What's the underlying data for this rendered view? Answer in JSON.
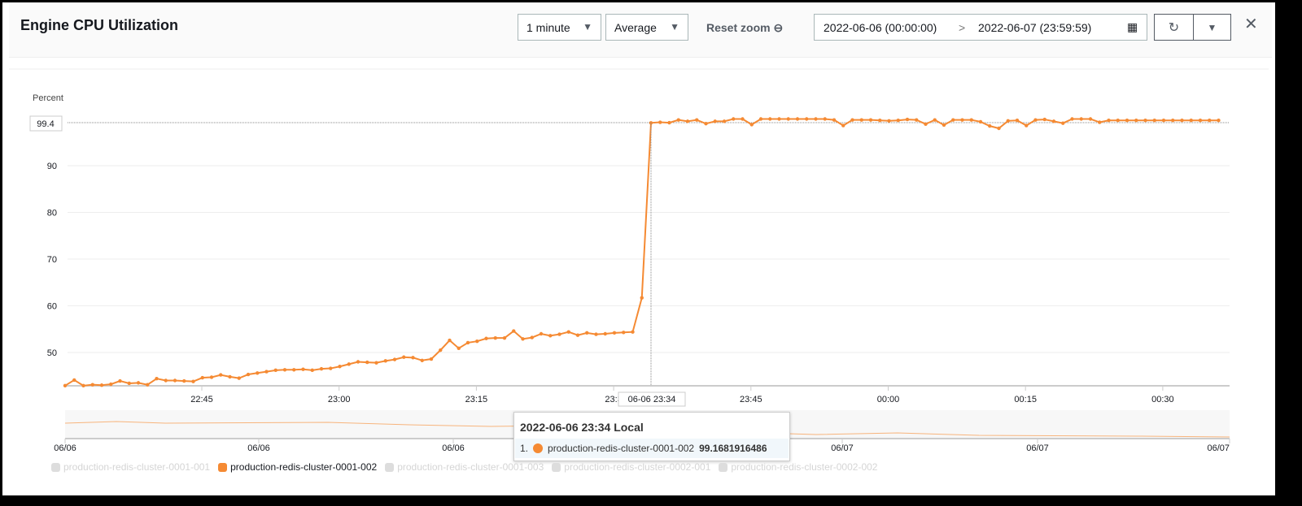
{
  "header": {
    "title": "Engine CPU Utilization",
    "period": "1 minute",
    "statistic": "Average",
    "reset_zoom": "Reset zoom",
    "range_start": "2022-06-06 (00:00:00)",
    "range_sep": ">",
    "range_end": "2022-06-07 (23:59:59)",
    "close": "✕",
    "refresh": "↻",
    "dropdown": "▼"
  },
  "chart_data": {
    "type": "line",
    "ylabel": "Percent",
    "ylim": [
      42.9,
      100.5
    ],
    "yticks": [
      "50",
      "60",
      "70",
      "80",
      "90"
    ],
    "highlight_y": "99.4",
    "xticks": [
      "22:45",
      "23:00",
      "23:15",
      "23:3",
      "23:45",
      "00:00",
      "00:15",
      "00:30"
    ],
    "start_time": "22:30",
    "interval_minutes": 1,
    "series": [
      {
        "name": "production-redis-cluster-0001-002",
        "color": "#f58a33",
        "values": [
          42.9,
          44.1,
          42.9,
          43.1,
          43.0,
          43.2,
          43.9,
          43.4,
          43.5,
          43.1,
          44.4,
          44.0,
          44.0,
          43.9,
          43.8,
          44.6,
          44.7,
          45.2,
          44.8,
          44.5,
          45.3,
          45.6,
          45.9,
          46.2,
          46.3,
          46.3,
          46.4,
          46.2,
          46.5,
          46.6,
          47.0,
          47.5,
          48.0,
          47.9,
          47.8,
          48.2,
          48.5,
          49.0,
          48.9,
          48.3,
          48.6,
          50.5,
          52.6,
          50.9,
          52.1,
          52.4,
          53.0,
          53.1,
          53.1,
          54.6,
          52.9,
          53.2,
          54.0,
          53.6,
          53.9,
          54.4,
          53.7,
          54.2,
          53.9,
          54.0,
          54.2,
          54.3,
          54.4,
          61.7,
          99.17,
          99.3,
          99.2,
          99.8,
          99.5,
          99.8,
          99.0,
          99.5,
          99.5,
          100.0,
          100.0,
          98.8,
          100.0,
          100.0,
          100.0,
          100.0,
          100.0,
          100.0,
          100.0,
          100.0,
          99.8,
          98.6,
          99.8,
          99.8,
          99.8,
          99.7,
          99.6,
          99.7,
          99.9,
          99.8,
          98.9,
          99.8,
          98.7,
          99.8,
          99.8,
          99.8,
          99.4,
          98.5,
          98.0,
          99.6,
          99.7,
          98.6,
          99.8,
          99.9,
          99.5,
          99.1,
          100.0,
          100.0,
          100.0,
          99.3,
          99.7,
          99.7,
          99.7,
          99.7,
          99.7,
          99.7,
          99.7,
          99.7,
          99.7,
          99.7,
          99.7,
          99.7,
          99.7
        ]
      }
    ],
    "cursor_label": "06-06 23:34",
    "navigator_labels": [
      "06/06",
      "06/06",
      "06/06",
      "06/07",
      "06/07",
      "06/07"
    ]
  },
  "tooltip": {
    "title": "2022-06-06 23:34 Local",
    "index": "1.",
    "series": "production-redis-cluster-0001-002",
    "value": "99.1681916486"
  },
  "legend": [
    {
      "label": "production-redis-cluster-0001-001",
      "active": false
    },
    {
      "label": "production-redis-cluster-0001-002",
      "active": true
    },
    {
      "label": "production-redis-cluster-0001-003",
      "active": false
    },
    {
      "label": "production-redis-cluster-0002-001",
      "active": false
    },
    {
      "label": "production-redis-cluster-0002-002",
      "active": false
    }
  ]
}
